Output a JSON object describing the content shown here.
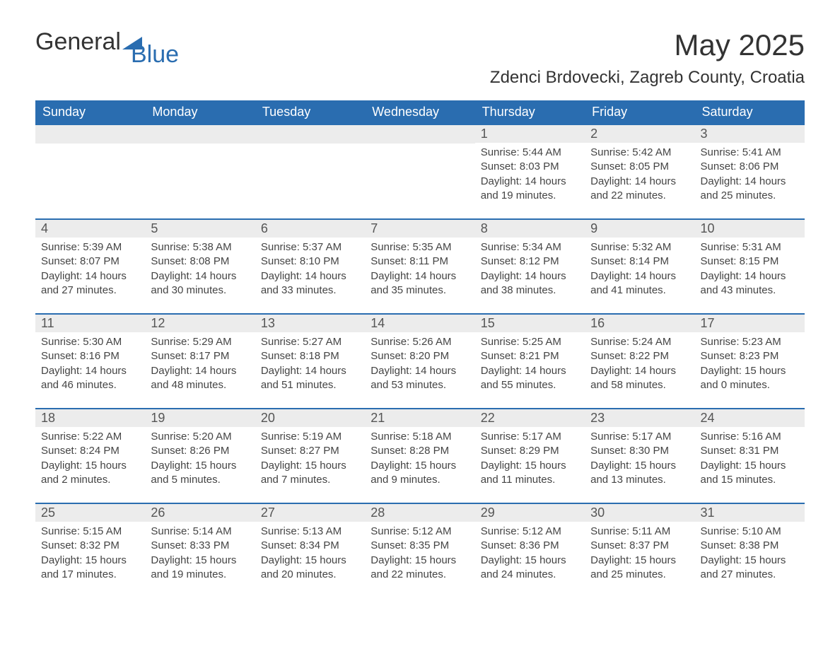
{
  "brand": {
    "part1": "General",
    "part2": "Blue"
  },
  "title": "May 2025",
  "location": "Zdenci Brdovecki, Zagreb County, Croatia",
  "colors": {
    "header_bg": "#2a6db0",
    "header_text": "#ffffff",
    "daynum_bg": "#ececec",
    "row_border": "#2a6db0",
    "body_text": "#444444",
    "page_bg": "#ffffff"
  },
  "typography": {
    "title_fontsize": 42,
    "location_fontsize": 24,
    "th_fontsize": 18,
    "daynum_fontsize": 18,
    "body_fontsize": 15
  },
  "weekdays": [
    "Sunday",
    "Monday",
    "Tuesday",
    "Wednesday",
    "Thursday",
    "Friday",
    "Saturday"
  ],
  "weeks": [
    [
      {
        "empty": true
      },
      {
        "empty": true
      },
      {
        "empty": true
      },
      {
        "empty": true
      },
      {
        "n": "1",
        "sunrise": "5:44 AM",
        "sunset": "8:03 PM",
        "daylight": "14 hours and 19 minutes."
      },
      {
        "n": "2",
        "sunrise": "5:42 AM",
        "sunset": "8:05 PM",
        "daylight": "14 hours and 22 minutes."
      },
      {
        "n": "3",
        "sunrise": "5:41 AM",
        "sunset": "8:06 PM",
        "daylight": "14 hours and 25 minutes."
      }
    ],
    [
      {
        "n": "4",
        "sunrise": "5:39 AM",
        "sunset": "8:07 PM",
        "daylight": "14 hours and 27 minutes."
      },
      {
        "n": "5",
        "sunrise": "5:38 AM",
        "sunset": "8:08 PM",
        "daylight": "14 hours and 30 minutes."
      },
      {
        "n": "6",
        "sunrise": "5:37 AM",
        "sunset": "8:10 PM",
        "daylight": "14 hours and 33 minutes."
      },
      {
        "n": "7",
        "sunrise": "5:35 AM",
        "sunset": "8:11 PM",
        "daylight": "14 hours and 35 minutes."
      },
      {
        "n": "8",
        "sunrise": "5:34 AM",
        "sunset": "8:12 PM",
        "daylight": "14 hours and 38 minutes."
      },
      {
        "n": "9",
        "sunrise": "5:32 AM",
        "sunset": "8:14 PM",
        "daylight": "14 hours and 41 minutes."
      },
      {
        "n": "10",
        "sunrise": "5:31 AM",
        "sunset": "8:15 PM",
        "daylight": "14 hours and 43 minutes."
      }
    ],
    [
      {
        "n": "11",
        "sunrise": "5:30 AM",
        "sunset": "8:16 PM",
        "daylight": "14 hours and 46 minutes."
      },
      {
        "n": "12",
        "sunrise": "5:29 AM",
        "sunset": "8:17 PM",
        "daylight": "14 hours and 48 minutes."
      },
      {
        "n": "13",
        "sunrise": "5:27 AM",
        "sunset": "8:18 PM",
        "daylight": "14 hours and 51 minutes."
      },
      {
        "n": "14",
        "sunrise": "5:26 AM",
        "sunset": "8:20 PM",
        "daylight": "14 hours and 53 minutes."
      },
      {
        "n": "15",
        "sunrise": "5:25 AM",
        "sunset": "8:21 PM",
        "daylight": "14 hours and 55 minutes."
      },
      {
        "n": "16",
        "sunrise": "5:24 AM",
        "sunset": "8:22 PM",
        "daylight": "14 hours and 58 minutes."
      },
      {
        "n": "17",
        "sunrise": "5:23 AM",
        "sunset": "8:23 PM",
        "daylight": "15 hours and 0 minutes."
      }
    ],
    [
      {
        "n": "18",
        "sunrise": "5:22 AM",
        "sunset": "8:24 PM",
        "daylight": "15 hours and 2 minutes."
      },
      {
        "n": "19",
        "sunrise": "5:20 AM",
        "sunset": "8:26 PM",
        "daylight": "15 hours and 5 minutes."
      },
      {
        "n": "20",
        "sunrise": "5:19 AM",
        "sunset": "8:27 PM",
        "daylight": "15 hours and 7 minutes."
      },
      {
        "n": "21",
        "sunrise": "5:18 AM",
        "sunset": "8:28 PM",
        "daylight": "15 hours and 9 minutes."
      },
      {
        "n": "22",
        "sunrise": "5:17 AM",
        "sunset": "8:29 PM",
        "daylight": "15 hours and 11 minutes."
      },
      {
        "n": "23",
        "sunrise": "5:17 AM",
        "sunset": "8:30 PM",
        "daylight": "15 hours and 13 minutes."
      },
      {
        "n": "24",
        "sunrise": "5:16 AM",
        "sunset": "8:31 PM",
        "daylight": "15 hours and 15 minutes."
      }
    ],
    [
      {
        "n": "25",
        "sunrise": "5:15 AM",
        "sunset": "8:32 PM",
        "daylight": "15 hours and 17 minutes."
      },
      {
        "n": "26",
        "sunrise": "5:14 AM",
        "sunset": "8:33 PM",
        "daylight": "15 hours and 19 minutes."
      },
      {
        "n": "27",
        "sunrise": "5:13 AM",
        "sunset": "8:34 PM",
        "daylight": "15 hours and 20 minutes."
      },
      {
        "n": "28",
        "sunrise": "5:12 AM",
        "sunset": "8:35 PM",
        "daylight": "15 hours and 22 minutes."
      },
      {
        "n": "29",
        "sunrise": "5:12 AM",
        "sunset": "8:36 PM",
        "daylight": "15 hours and 24 minutes."
      },
      {
        "n": "30",
        "sunrise": "5:11 AM",
        "sunset": "8:37 PM",
        "daylight": "15 hours and 25 minutes."
      },
      {
        "n": "31",
        "sunrise": "5:10 AM",
        "sunset": "8:38 PM",
        "daylight": "15 hours and 27 minutes."
      }
    ]
  ],
  "labels": {
    "sunrise_prefix": "Sunrise: ",
    "sunset_prefix": "Sunset: ",
    "daylight_prefix": "Daylight: "
  }
}
